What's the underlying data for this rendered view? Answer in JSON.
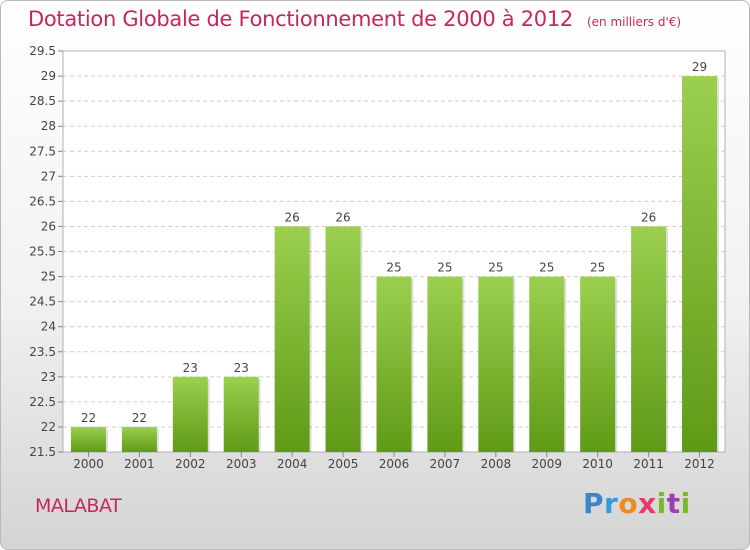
{
  "header": {
    "title": "Dotation Globale de Fonctionnement de 2000 à 2012",
    "unit": "(en milliers d'€)"
  },
  "footer": {
    "commune": "MALABAT",
    "logo": [
      "P",
      "r",
      "o",
      "x",
      "i",
      "t",
      "i"
    ]
  },
  "colors": {
    "title": "#c8265b",
    "bar_top": "#9ccf4f",
    "bar_bottom": "#5f9a17"
  },
  "chart_data": {
    "type": "bar",
    "title": "Dotation Globale de Fonctionnement de 2000 à 2012",
    "subtitle": "(en milliers d'€)",
    "xlabel": "",
    "ylabel": "",
    "categories": [
      "2000",
      "2001",
      "2002",
      "2003",
      "2004",
      "2005",
      "2006",
      "2007",
      "2008",
      "2009",
      "2010",
      "2011",
      "2012"
    ],
    "values": [
      22,
      22,
      23,
      23,
      26,
      26,
      25,
      25,
      25,
      25,
      25,
      26,
      29
    ],
    "data_labels": [
      "22",
      "22",
      "23",
      "23",
      "26",
      "26",
      "25",
      "25",
      "25",
      "25",
      "25",
      "26",
      "29"
    ],
    "ylim": [
      21.5,
      29.5
    ],
    "yticks": [
      "21.5",
      "22",
      "22.5",
      "23",
      "23.5",
      "24",
      "24.5",
      "25",
      "25.5",
      "26",
      "26.5",
      "27",
      "27.5",
      "28",
      "28.5",
      "29",
      "29.5"
    ],
    "grid": "horizontal dashed",
    "legend": "none"
  }
}
